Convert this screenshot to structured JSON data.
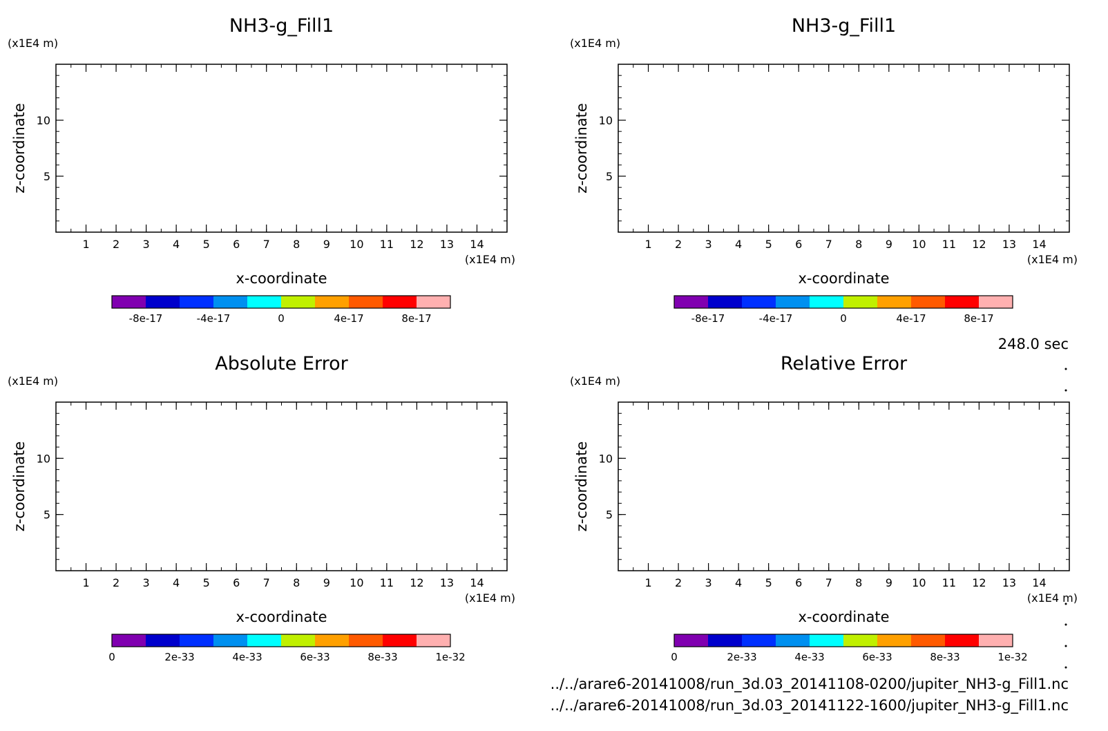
{
  "time_label": "248.0 sec",
  "file_paths": [
    "../../arare6-20141008/run_3d.03_20141108-0200/jupiter_NH3-g_Fill1.nc",
    "../../arare6-20141008/run_3d.03_20141122-1600/jupiter_NH3-g_Fill1.nc"
  ],
  "colors": {
    "colorbar": [
      "#8000b0",
      "#0000cc",
      "#0030ff",
      "#0090f0",
      "#00ffff",
      "#c0f000",
      "#ffa000",
      "#ff5a00",
      "#ff0000",
      "#ffb0b0"
    ]
  },
  "chart_data": [
    {
      "type": "heatmap",
      "title": "NH3-g_Fill1",
      "xlabel": "x-coordinate",
      "ylabel": "z-coordinate",
      "x_unit": "(x1E4 m)",
      "y_unit": "(x1E4 m)",
      "xlim": [
        0,
        15
      ],
      "ylim": [
        0,
        15
      ],
      "x_ticks": [
        1,
        2,
        3,
        4,
        5,
        6,
        7,
        8,
        9,
        10,
        11,
        12,
        13,
        14
      ],
      "y_ticks": [
        5,
        10
      ],
      "colorbar": {
        "min": -1e-16,
        "max": 1e-16,
        "levels": 10,
        "tick_values": [
          -8e-17,
          -4e-17,
          0,
          4e-17,
          8e-17
        ],
        "tick_labels": [
          "-8e-17",
          "-4e-17",
          "0",
          "4e-17",
          "8e-17"
        ]
      }
    },
    {
      "type": "heatmap",
      "title": "NH3-g_Fill1",
      "xlabel": "x-coordinate",
      "ylabel": "z-coordinate",
      "x_unit": "(x1E4 m)",
      "y_unit": "(x1E4 m)",
      "xlim": [
        0,
        15
      ],
      "ylim": [
        0,
        15
      ],
      "x_ticks": [
        1,
        2,
        3,
        4,
        5,
        6,
        7,
        8,
        9,
        10,
        11,
        12,
        13,
        14
      ],
      "y_ticks": [
        5,
        10
      ],
      "colorbar": {
        "min": -1e-16,
        "max": 1e-16,
        "levels": 10,
        "tick_values": [
          -8e-17,
          -4e-17,
          0,
          4e-17,
          8e-17
        ],
        "tick_labels": [
          "-8e-17",
          "-4e-17",
          "0",
          "4e-17",
          "8e-17"
        ]
      }
    },
    {
      "type": "heatmap",
      "title": "Absolute Error",
      "xlabel": "x-coordinate",
      "ylabel": "z-coordinate",
      "x_unit": "(x1E4 m)",
      "y_unit": "(x1E4 m)",
      "xlim": [
        0,
        15
      ],
      "ylim": [
        0,
        15
      ],
      "x_ticks": [
        1,
        2,
        3,
        4,
        5,
        6,
        7,
        8,
        9,
        10,
        11,
        12,
        13,
        14
      ],
      "y_ticks": [
        5,
        10
      ],
      "colorbar": {
        "min": 0,
        "max": 1e-32,
        "levels": 10,
        "tick_values": [
          0,
          2e-33,
          4e-33,
          6e-33,
          8e-33,
          1e-32
        ],
        "tick_labels": [
          "0",
          "2e-33",
          "4e-33",
          "6e-33",
          "8e-33",
          "1e-32"
        ]
      }
    },
    {
      "type": "heatmap",
      "title": "Relative Error",
      "xlabel": "x-coordinate",
      "ylabel": "z-coordinate",
      "x_unit": "(x1E4 m)",
      "y_unit": "(x1E4 m)",
      "xlim": [
        0,
        15
      ],
      "ylim": [
        0,
        15
      ],
      "x_ticks": [
        1,
        2,
        3,
        4,
        5,
        6,
        7,
        8,
        9,
        10,
        11,
        12,
        13,
        14
      ],
      "y_ticks": [
        5,
        10
      ],
      "colorbar": {
        "min": 0,
        "max": 1e-32,
        "levels": 10,
        "tick_values": [
          0,
          2e-33,
          4e-33,
          6e-33,
          8e-33,
          1e-32
        ],
        "tick_labels": [
          "0",
          "2e-33",
          "4e-33",
          "6e-33",
          "8e-33",
          "1e-32"
        ]
      }
    }
  ]
}
